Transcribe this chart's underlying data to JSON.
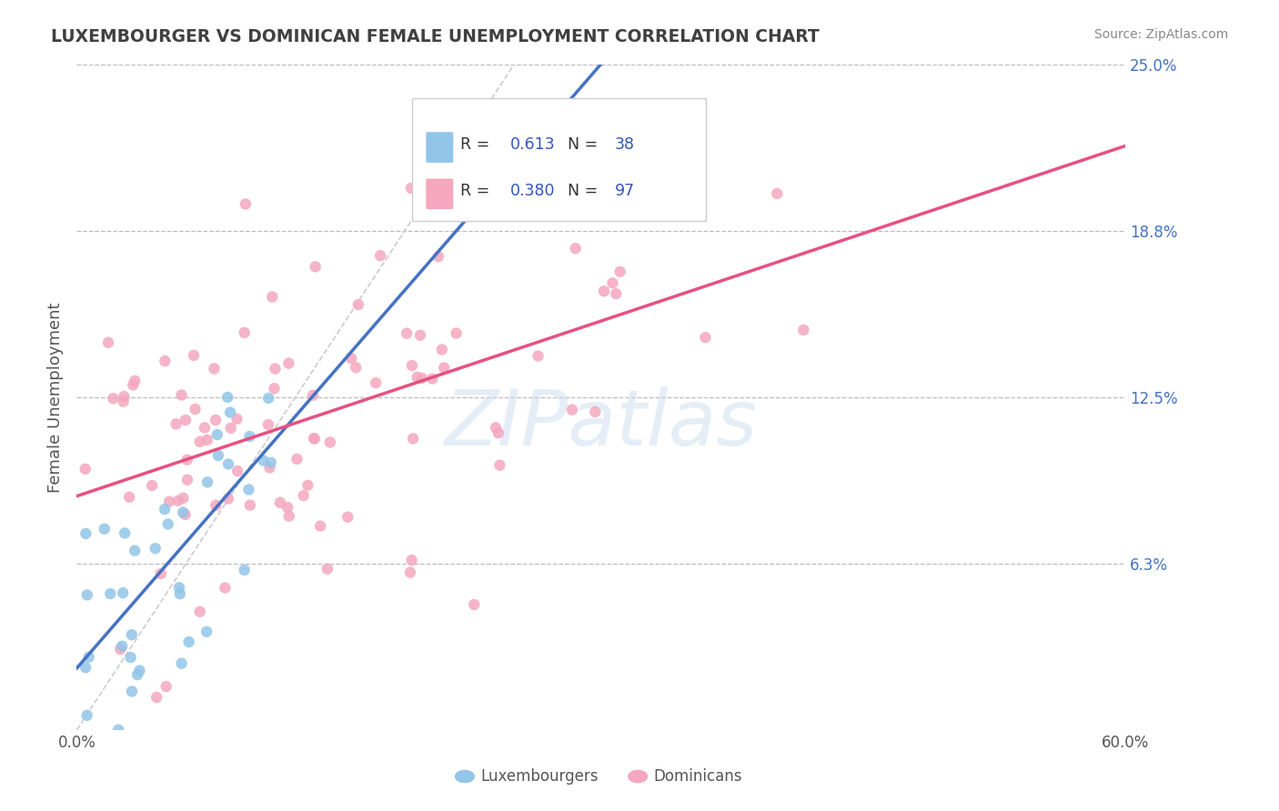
{
  "title": "LUXEMBOURGER VS DOMINICAN FEMALE UNEMPLOYMENT CORRELATION CHART",
  "source_text": "Source: ZipAtlas.com",
  "ylabel": "Female Unemployment",
  "xlim": [
    0.0,
    0.6
  ],
  "ylim": [
    0.0,
    0.25
  ],
  "yticks": [
    0.0625,
    0.125,
    0.1875,
    0.25
  ],
  "ytick_labels": [
    "6.3%",
    "12.5%",
    "18.8%",
    "25.0%"
  ],
  "xtick_labels": [
    "0.0%",
    "60.0%"
  ],
  "legend_R1": "0.613",
  "legend_N1": "38",
  "legend_R2": "0.380",
  "legend_N2": "97",
  "color_lux": "#92C5E8",
  "color_dom": "#F4A7BF",
  "color_lux_line": "#4472C4",
  "color_dom_line": "#E85080",
  "watermark": "ZIPatlas",
  "background_color": "#FFFFFF",
  "grid_color": "#BBBBBB",
  "lux_R": 0.613,
  "lux_N": 38,
  "dom_R": 0.38,
  "dom_N": 97,
  "title_color": "#404040",
  "tick_color": "#4472C4",
  "axis_tick_color": "#555555",
  "blue_val_color": "#3355BB"
}
